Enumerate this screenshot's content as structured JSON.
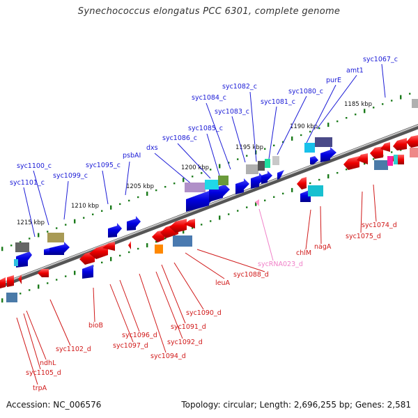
{
  "title": "Synechococcus elongatus PCC 6301, complete genome",
  "footer": {
    "accession": "Accession: NC_006576",
    "stats": "Topology: circular; Length: 2,696,255 bp; Genes: 2,581"
  },
  "colors": {
    "forward_label": "#1a1ad6",
    "reverse_label": "#d01818",
    "rna_label": "#f080c8",
    "backbone": "#8a8a8a",
    "ticks": "#1a7a1a"
  },
  "ticks": [
    "1215 kbp",
    "1210 kbp",
    "1205 kbp",
    "1200 kbp",
    "1195 kbp",
    "1190 kbp",
    "1185 kbp"
  ],
  "forward_labels": [
    "syc1067_c",
    "amt1",
    "purE",
    "syc1080_c",
    "syc1081_c",
    "syc1082_c",
    "syc1083_c",
    "syc1084_c",
    "syc1085_c",
    "syc1086_c",
    "dxs",
    "psbAI",
    "syc1095_c",
    "syc1099_c",
    "syc1100_c",
    "syc1101_c"
  ],
  "reverse_labels": [
    "syc1074_d",
    "syc1075_d",
    "nagA",
    "chlM",
    "syc1088_d",
    "leuA",
    "syc1090_d",
    "syc1091_d",
    "syc1092_d",
    "syc1094_d",
    "syc1096_d",
    "syc1097_d",
    "bioB",
    "syc1102_d",
    "ndhL",
    "syc1105_d",
    "trpA"
  ],
  "rna_labels": [
    "sycRNA023_d"
  ]
}
